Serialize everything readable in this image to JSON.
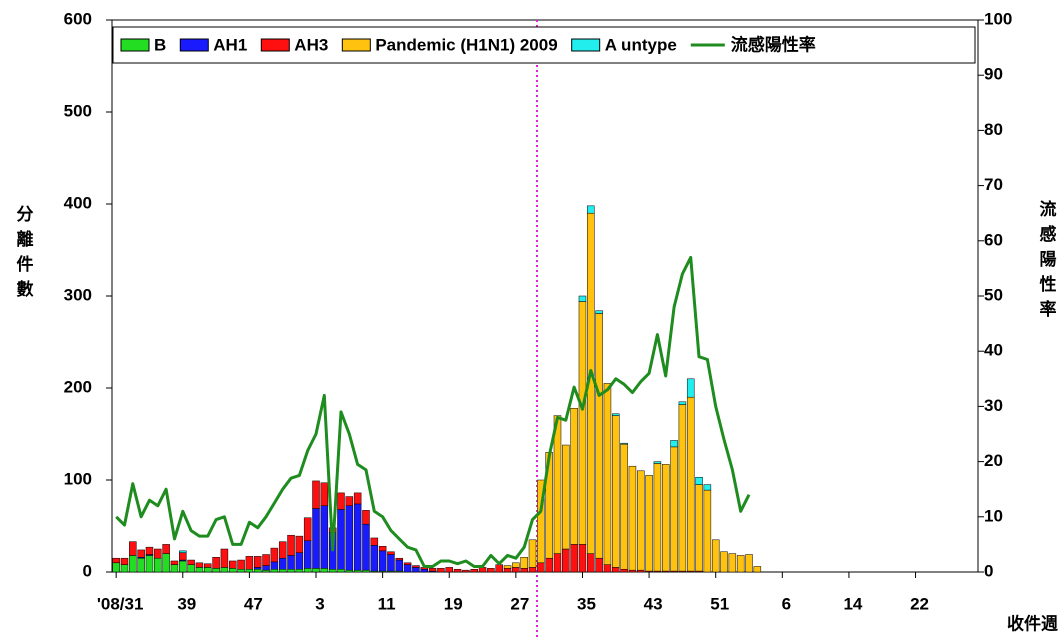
{
  "chart_data": {
    "type": "bar",
    "stacked": true,
    "y_label": "分離件數",
    "y2_label": "流感陽性率",
    "x_label": "收件週",
    "categories": [
      "'08/31",
      null,
      null,
      null,
      null,
      null,
      null,
      null,
      "39",
      null,
      null,
      null,
      null,
      null,
      null,
      null,
      "47",
      null,
      null,
      null,
      null,
      null,
      null,
      null,
      "3",
      null,
      null,
      null,
      null,
      null,
      null,
      null,
      "11",
      null,
      null,
      null,
      null,
      null,
      null,
      null,
      "19",
      null,
      null,
      null,
      null,
      null,
      null,
      null,
      "27",
      null,
      null,
      null,
      null,
      null,
      null,
      null,
      "35",
      null,
      null,
      null,
      null,
      null,
      null,
      null,
      "43",
      null,
      null,
      null,
      null,
      null,
      null,
      null,
      "51",
      null,
      null,
      null,
      null,
      null,
      null,
      null,
      "6",
      null,
      null,
      null,
      null,
      null,
      null,
      null,
      "14",
      null,
      null,
      null,
      null,
      null,
      null,
      null,
      "22",
      null,
      null,
      null,
      null,
      null,
      null,
      null
    ],
    "series": [
      {
        "name": "B",
        "color": "#22dd22",
        "values": [
          10,
          8,
          18,
          15,
          18,
          15,
          20,
          8,
          12,
          8,
          5,
          5,
          4,
          5,
          4,
          3,
          3,
          3,
          2,
          3,
          3,
          3,
          3,
          4,
          4,
          4,
          3,
          3,
          2,
          2,
          2,
          1,
          1,
          1,
          1,
          0,
          0,
          0,
          0,
          0,
          0,
          0,
          0,
          0,
          0,
          0,
          0,
          0,
          0,
          0,
          0,
          0,
          0,
          0,
          0,
          0,
          0,
          0,
          0,
          0,
          0,
          0,
          0,
          0,
          0,
          0,
          0,
          0,
          0,
          0,
          0,
          0,
          0,
          0,
          0,
          0,
          0,
          0,
          null,
          null,
          null,
          null,
          null,
          null,
          null,
          null,
          null,
          null,
          null,
          null,
          null,
          null,
          null,
          null,
          null,
          null,
          null,
          null,
          null,
          null,
          null,
          null,
          null,
          null
        ]
      },
      {
        "name": "AH1",
        "color": "#1a1aff",
        "values": [
          0,
          0,
          0,
          1,
          1,
          0,
          0,
          0,
          1,
          0,
          0,
          0,
          0,
          0,
          0,
          0,
          0,
          2,
          5,
          8,
          12,
          15,
          18,
          30,
          65,
          68,
          40,
          65,
          70,
          72,
          50,
          28,
          22,
          18,
          12,
          8,
          5,
          3,
          1,
          0,
          0,
          0,
          0,
          0,
          0,
          0,
          0,
          0,
          0,
          0,
          0,
          0,
          0,
          0,
          0,
          0,
          0,
          0,
          0,
          0,
          0,
          0,
          0,
          0,
          0,
          0,
          0,
          0,
          0,
          0,
          0,
          0,
          0,
          0,
          0,
          0,
          0,
          0,
          null,
          null,
          null,
          null,
          null,
          null,
          null,
          null,
          null,
          null,
          null,
          null,
          null,
          null,
          null,
          null,
          null,
          null,
          null,
          null,
          null,
          null,
          null,
          null,
          null,
          null
        ]
      },
      {
        "name": "AH3",
        "color": "#ff1010",
        "values": [
          5,
          7,
          15,
          8,
          8,
          10,
          10,
          4,
          8,
          5,
          5,
          4,
          12,
          20,
          8,
          10,
          14,
          12,
          12,
          15,
          18,
          22,
          18,
          25,
          30,
          25,
          5,
          18,
          10,
          12,
          15,
          8,
          5,
          3,
          2,
          2,
          2,
          2,
          3,
          4,
          5,
          3,
          2,
          3,
          5,
          4,
          8,
          4,
          5,
          4,
          5,
          10,
          15,
          20,
          25,
          30,
          30,
          20,
          15,
          8,
          5,
          3,
          2,
          2,
          1,
          1,
          1,
          1,
          1,
          1,
          1,
          0,
          0,
          0,
          0,
          0,
          0,
          0,
          null,
          null,
          null,
          null,
          null,
          null,
          null,
          null,
          null,
          null,
          null,
          null,
          null,
          null,
          null,
          null,
          null,
          null,
          null,
          null,
          null,
          null,
          null,
          null,
          null,
          null
        ]
      },
      {
        "name": "Pandemic (H1N1) 2009",
        "color": "#ffc20e",
        "values": [
          0,
          0,
          0,
          0,
          0,
          0,
          0,
          0,
          0,
          0,
          0,
          0,
          0,
          0,
          0,
          0,
          0,
          0,
          0,
          0,
          0,
          0,
          0,
          0,
          0,
          0,
          0,
          0,
          0,
          0,
          0,
          0,
          0,
          0,
          0,
          0,
          0,
          0,
          0,
          0,
          0,
          0,
          0,
          0,
          0,
          0,
          0,
          3,
          5,
          12,
          30,
          90,
          115,
          150,
          113,
          148,
          264,
          370,
          266,
          197,
          165,
          136,
          113,
          108,
          104,
          117,
          116,
          135,
          181,
          189,
          94,
          89,
          35,
          22,
          20,
          18,
          19,
          6,
          null,
          null,
          null,
          null,
          null,
          null,
          null,
          null,
          null,
          null,
          null,
          null,
          null,
          null,
          null,
          null,
          null,
          null,
          null,
          null,
          null,
          null,
          null,
          null,
          null,
          null
        ]
      },
      {
        "name": "A untype",
        "color": "#22eeee",
        "values": [
          0,
          0,
          0,
          0,
          0,
          0,
          0,
          0,
          2,
          0,
          0,
          0,
          0,
          0,
          0,
          0,
          0,
          0,
          0,
          0,
          0,
          0,
          0,
          0,
          0,
          0,
          0,
          0,
          0,
          0,
          0,
          0,
          0,
          0,
          0,
          0,
          0,
          0,
          0,
          0,
          0,
          0,
          0,
          0,
          0,
          0,
          0,
          0,
          0,
          0,
          0,
          0,
          0,
          0,
          0,
          0,
          6,
          8,
          3,
          0,
          2,
          1,
          0,
          0,
          0,
          2,
          0,
          7,
          3,
          20,
          8,
          6,
          0,
          0,
          0,
          0,
          0,
          0,
          null,
          null,
          null,
          null,
          null,
          null,
          null,
          null,
          null,
          null,
          null,
          null,
          null,
          null,
          null,
          null,
          null,
          null,
          null,
          null,
          null,
          null,
          null,
          null,
          null,
          null
        ]
      },
      {
        "name": "流感陽性率",
        "type": "line",
        "axis": "y2",
        "color": "#1e8c1e",
        "values": [
          10,
          8.5,
          16,
          10,
          13,
          12,
          15,
          6,
          11,
          7.5,
          6.5,
          6.5,
          9.5,
          10,
          5,
          5,
          9,
          8,
          10,
          12.5,
          15,
          17,
          17.5,
          22,
          25,
          32,
          4,
          29,
          25,
          19.5,
          18.5,
          11,
          10,
          7.5,
          6,
          4.5,
          4,
          1,
          1,
          2,
          2,
          1.5,
          2,
          1,
          1,
          3,
          1.5,
          3,
          2.5,
          4.5,
          9.5,
          11,
          21,
          28,
          27.5,
          33.5,
          29.5,
          36.5,
          32,
          33,
          35,
          34,
          32.5,
          34.5,
          36,
          43,
          35.5,
          48,
          54,
          57,
          39,
          38.5,
          30,
          24,
          18.5,
          11,
          14,
          null,
          null,
          null,
          null,
          null,
          null,
          null,
          null,
          null,
          null,
          null,
          null,
          null,
          null,
          null,
          null,
          null,
          null,
          null,
          null,
          null,
          null,
          null,
          null,
          null,
          null,
          null
        ]
      }
    ],
    "ylim": [
      0,
      600
    ],
    "yticks": [
      0,
      100,
      200,
      300,
      400,
      500,
      600
    ],
    "y2lim": [
      0,
      100
    ],
    "y2ticks": [
      0,
      10,
      20,
      30,
      40,
      50,
      60,
      70,
      80,
      90,
      100
    ],
    "legend": "top"
  }
}
